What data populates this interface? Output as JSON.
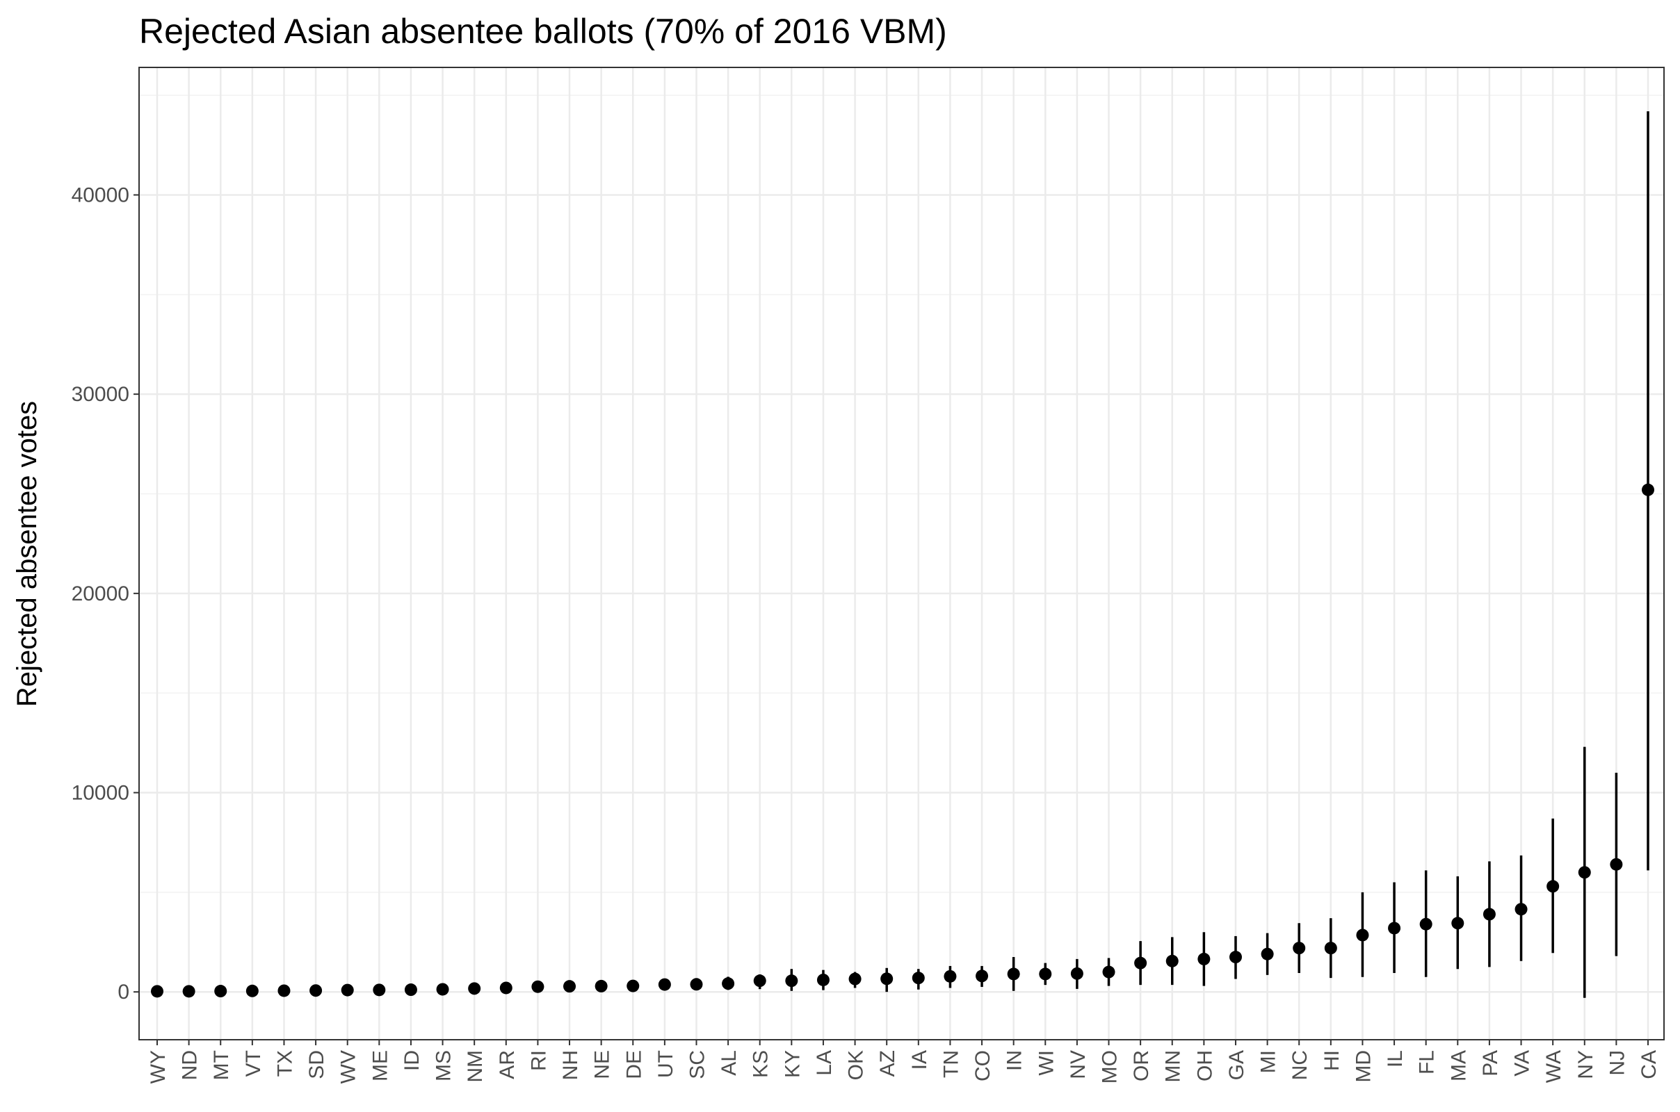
{
  "chart_data": {
    "type": "scatter",
    "subtype": "point-range",
    "title": "Rejected Asian absentee ballots (70% of 2016 VBM)",
    "xlabel": "",
    "ylabel": "Rejected absentee votes",
    "ylim": [
      -2400,
      46400
    ],
    "yticks": [
      0,
      10000,
      20000,
      30000,
      40000
    ],
    "ytick_labels": [
      "0",
      "10000",
      "20000",
      "30000",
      "40000"
    ],
    "grid": true,
    "legend": "none",
    "colors": {
      "point": "#000000",
      "grid_major": "#ebebeb",
      "grid_minor": "#f2f2f2",
      "panel_border": "#333333",
      "tick_label": "#4d4d4d"
    },
    "series": [
      {
        "points": [
          {
            "x": "WY",
            "y": 30,
            "low": 0,
            "high": 80
          },
          {
            "x": "ND",
            "y": 30,
            "low": 0,
            "high": 80
          },
          {
            "x": "MT",
            "y": 40,
            "low": 0,
            "high": 100
          },
          {
            "x": "VT",
            "y": 50,
            "low": 0,
            "high": 110
          },
          {
            "x": "TX",
            "y": 60,
            "low": 0,
            "high": 130
          },
          {
            "x": "SD",
            "y": 70,
            "low": 0,
            "high": 150
          },
          {
            "x": "WV",
            "y": 90,
            "low": 20,
            "high": 180
          },
          {
            "x": "ME",
            "y": 100,
            "low": 20,
            "high": 200
          },
          {
            "x": "ID",
            "y": 110,
            "low": 20,
            "high": 220
          },
          {
            "x": "MS",
            "y": 130,
            "low": 30,
            "high": 250
          },
          {
            "x": "NM",
            "y": 170,
            "low": 40,
            "high": 320
          },
          {
            "x": "AR",
            "y": 200,
            "low": 50,
            "high": 380
          },
          {
            "x": "RI",
            "y": 260,
            "low": 60,
            "high": 470
          },
          {
            "x": "NH",
            "y": 280,
            "low": 70,
            "high": 520
          },
          {
            "x": "NE",
            "y": 290,
            "low": 70,
            "high": 540
          },
          {
            "x": "DE",
            "y": 300,
            "low": 80,
            "high": 560
          },
          {
            "x": "UT",
            "y": 370,
            "low": 90,
            "high": 660
          },
          {
            "x": "SC",
            "y": 380,
            "low": 90,
            "high": 680
          },
          {
            "x": "AL",
            "y": 420,
            "low": 100,
            "high": 760
          },
          {
            "x": "KS",
            "y": 560,
            "low": 140,
            "high": 880
          },
          {
            "x": "KY",
            "y": 560,
            "low": 50,
            "high": 1150
          },
          {
            "x": "LA",
            "y": 600,
            "low": 90,
            "high": 1100
          },
          {
            "x": "OK",
            "y": 650,
            "low": 200,
            "high": 1000
          },
          {
            "x": "AZ",
            "y": 660,
            "low": 0,
            "high": 1200
          },
          {
            "x": "IA",
            "y": 700,
            "low": 120,
            "high": 1150
          },
          {
            "x": "TN",
            "y": 780,
            "low": 200,
            "high": 1300
          },
          {
            "x": "CO",
            "y": 800,
            "low": 250,
            "high": 1300
          },
          {
            "x": "IN",
            "y": 900,
            "low": 50,
            "high": 1750
          },
          {
            "x": "WI",
            "y": 900,
            "low": 350,
            "high": 1450
          },
          {
            "x": "NV",
            "y": 920,
            "low": 150,
            "high": 1650
          },
          {
            "x": "MO",
            "y": 1000,
            "low": 300,
            "high": 1700
          },
          {
            "x": "OR",
            "y": 1450,
            "low": 350,
            "high": 2550
          },
          {
            "x": "MN",
            "y": 1550,
            "low": 350,
            "high": 2750
          },
          {
            "x": "OH",
            "y": 1650,
            "low": 300,
            "high": 3000
          },
          {
            "x": "GA",
            "y": 1750,
            "low": 650,
            "high": 2800
          },
          {
            "x": "MI",
            "y": 1900,
            "low": 850,
            "high": 2950
          },
          {
            "x": "NC",
            "y": 2200,
            "low": 950,
            "high": 3450
          },
          {
            "x": "HI",
            "y": 2200,
            "low": 700,
            "high": 3700
          },
          {
            "x": "MD",
            "y": 2850,
            "low": 750,
            "high": 5000
          },
          {
            "x": "IL",
            "y": 3200,
            "low": 950,
            "high": 5500
          },
          {
            "x": "FL",
            "y": 3400,
            "low": 750,
            "high": 6100
          },
          {
            "x": "MA",
            "y": 3450,
            "low": 1150,
            "high": 5800
          },
          {
            "x": "PA",
            "y": 3900,
            "low": 1250,
            "high": 6550
          },
          {
            "x": "VA",
            "y": 4150,
            "low": 1550,
            "high": 6850
          },
          {
            "x": "WA",
            "y": 5300,
            "low": 1950,
            "high": 8700
          },
          {
            "x": "NY",
            "y": 6000,
            "low": -300,
            "high": 12300
          },
          {
            "x": "NJ",
            "y": 6400,
            "low": 1800,
            "high": 11000
          },
          {
            "x": "CA",
            "y": 25200,
            "low": 6100,
            "high": 44200
          }
        ]
      }
    ]
  }
}
